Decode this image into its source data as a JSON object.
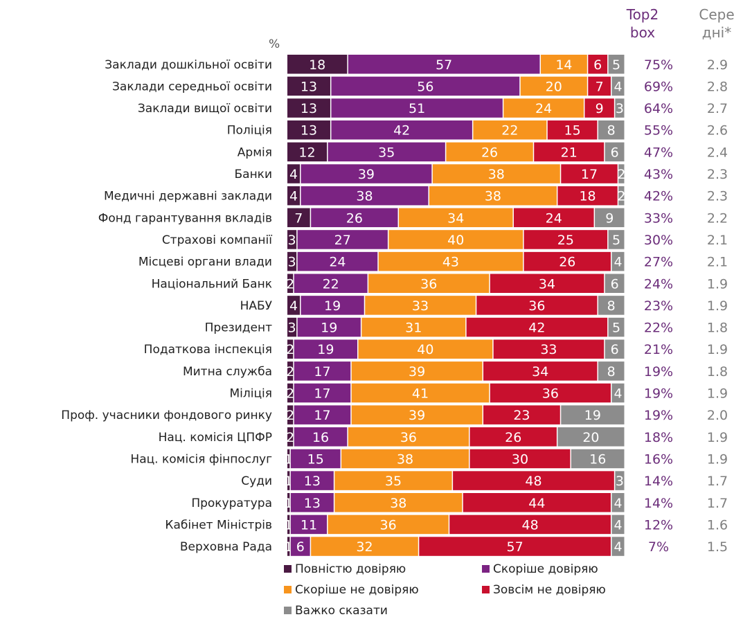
{
  "chart_data": {
    "type": "bar",
    "orientation": "horizontal",
    "stacked": true,
    "unit_label": "%",
    "categories": [
      "Заклади дошкільної освіти",
      "Заклади середньої освіти",
      "Заклади вищої освіти",
      "Поліція",
      "Армія",
      "Банки",
      "Медичні державні заклади",
      "Фонд гарантування вкладів",
      "Страхові компанії",
      "Місцеві органи влади",
      "Національний Банк",
      "НАБУ",
      "Президент",
      "Податкова інспекція",
      "Митна служба",
      "Міліція",
      "Проф. учасники фондового ринку",
      "Нац. комісія ЦПФР",
      "Нац. комісія фінпослуг",
      "Суди",
      "Прокуратура",
      "Кабінет Міністрів",
      "Верховна Рада"
    ],
    "series": [
      {
        "name": "Повністю довіряю",
        "color": "#4a1942",
        "values": [
          18,
          13,
          13,
          13,
          12,
          4,
          4,
          7,
          3,
          3,
          2,
          4,
          3,
          2,
          2,
          2,
          2,
          2,
          1,
          1,
          1,
          1,
          1
        ]
      },
      {
        "name": "Скоріше довіряю",
        "color": "#7b2382",
        "values": [
          57,
          56,
          51,
          42,
          35,
          39,
          38,
          26,
          27,
          24,
          22,
          19,
          19,
          19,
          17,
          17,
          17,
          16,
          15,
          13,
          13,
          11,
          6
        ]
      },
      {
        "name": "Скоріше не довіряю",
        "color": "#f7941d",
        "values": [
          14,
          20,
          24,
          22,
          26,
          38,
          38,
          34,
          40,
          43,
          36,
          33,
          31,
          40,
          39,
          41,
          39,
          36,
          38,
          35,
          38,
          36,
          32
        ]
      },
      {
        "name": "Зовсім не довіряю",
        "color": "#c8102e",
        "values": [
          6,
          7,
          9,
          15,
          21,
          17,
          18,
          24,
          25,
          26,
          34,
          36,
          42,
          33,
          34,
          36,
          23,
          26,
          30,
          48,
          44,
          48,
          57
        ]
      },
      {
        "name": "Важко сказати",
        "color": "#8c8c8c",
        "values": [
          5,
          4,
          3,
          8,
          6,
          2,
          2,
          9,
          5,
          4,
          6,
          8,
          5,
          6,
          8,
          4,
          19,
          20,
          16,
          3,
          4,
          4,
          4
        ]
      }
    ],
    "top2box": [
      "75%",
      "69%",
      "64%",
      "55%",
      "47%",
      "43%",
      "42%",
      "33%",
      "30%",
      "27%",
      "24%",
      "23%",
      "22%",
      "21%",
      "19%",
      "19%",
      "19%",
      "18%",
      "16%",
      "14%",
      "14%",
      "12%",
      "7%"
    ],
    "mean": [
      "2.9",
      "2.8",
      "2.7",
      "2.6",
      "2.4",
      "2.3",
      "2.3",
      "2.2",
      "2.1",
      "2.1",
      "1.9",
      "1.9",
      "1.8",
      "1.9",
      "1.8",
      "1.9",
      "2.0",
      "1.9",
      "1.9",
      "1.7",
      "1.7",
      "1.6",
      "1.5"
    ],
    "header_top2": "Top2 box",
    "header_mean": "Сере дні*",
    "legend_position": "bottom",
    "grid": false
  }
}
